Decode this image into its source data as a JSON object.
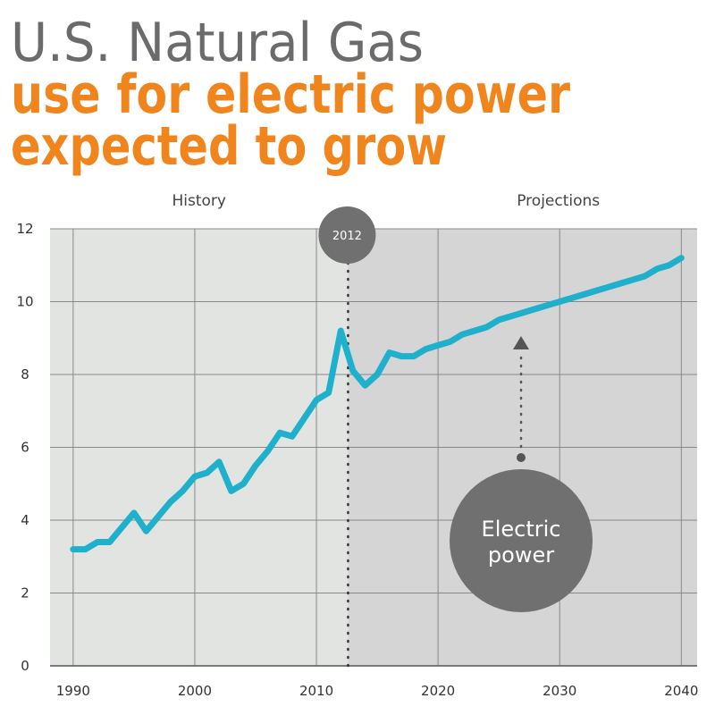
{
  "chart_data": {
    "type": "line",
    "title": "U.S. Natural Gas",
    "subtitle_lines": [
      "use for electric power",
      "expected to grow"
    ],
    "region_labels": [
      "History",
      "Projections"
    ],
    "divider": 2012.6,
    "divider_label": "2012",
    "annotation_lines": [
      "Electric",
      "power"
    ],
    "x": [
      1990,
      1991,
      1992,
      1993,
      1994,
      1995,
      1996,
      1997,
      1998,
      1999,
      2000,
      2001,
      2002,
      2003,
      2004,
      2005,
      2006,
      2007,
      2008,
      2009,
      2010,
      2011,
      2012,
      2013,
      2014,
      2015,
      2016,
      2017,
      2018,
      2019,
      2020,
      2021,
      2022,
      2023,
      2024,
      2025,
      2026,
      2027,
      2028,
      2029,
      2030,
      2031,
      2032,
      2033,
      2034,
      2035,
      2036,
      2037,
      2038,
      2039,
      2040
    ],
    "series": [
      {
        "name": "Electric power",
        "color": "#1fb0cc",
        "values": [
          3.2,
          3.2,
          3.4,
          3.4,
          3.8,
          4.2,
          3.7,
          4.1,
          4.5,
          4.8,
          5.2,
          5.3,
          5.6,
          4.8,
          5.0,
          5.5,
          5.9,
          6.4,
          6.3,
          6.8,
          7.3,
          7.5,
          9.2,
          8.1,
          7.7,
          8.0,
          8.6,
          8.5,
          8.5,
          8.7,
          8.8,
          8.9,
          9.1,
          9.2,
          9.3,
          9.5,
          9.6,
          9.7,
          9.8,
          9.9,
          10.0,
          10.1,
          10.2,
          10.3,
          10.4,
          10.5,
          10.6,
          10.7,
          10.9,
          11.0,
          11.2
        ]
      }
    ],
    "xlim": [
      1988.1,
      2041.3
    ],
    "ylim": [
      0,
      12
    ],
    "xticks": [
      1990,
      2000,
      2010,
      2020,
      2030,
      2040
    ],
    "yticks": [
      0,
      2,
      4,
      6,
      8,
      10,
      12
    ],
    "grid": true
  }
}
